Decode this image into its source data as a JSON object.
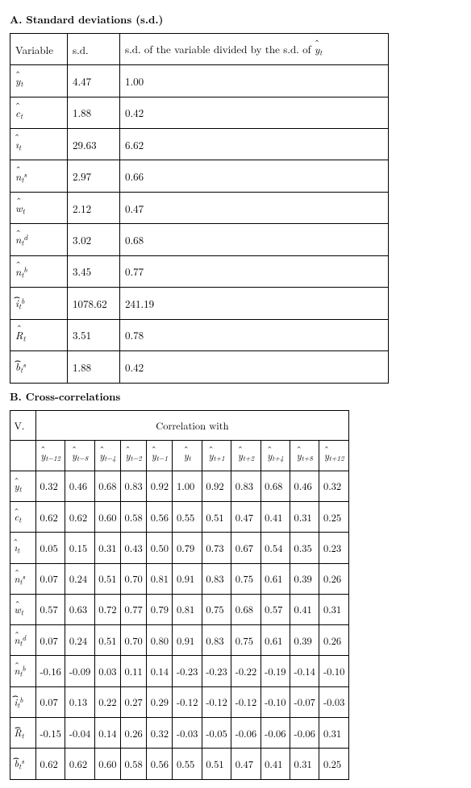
{
  "section_a_title": "A. Standard deviations (s.d.)",
  "section_b_title": "B. Cross-correlations",
  "text_color": "#000000",
  "background_color": "#ffffff",
  "border_color": "#000000",
  "tableA": {
    "headers": {
      "c1": "Variable",
      "c2": "s.d.",
      "c3": "s.d. of the variable divided by the s.d. of "
    },
    "y_hat_label": "ŷ_t",
    "rows": [
      {
        "var_html": "<span class='hat'>y</span><sub class='s'>t</sub>",
        "sd": "4.47",
        "ratio": "1.00"
      },
      {
        "var_html": "<span class='hat'>c</span><sub class='s'>t</sub>",
        "sd": "1.88",
        "ratio": "0.42"
      },
      {
        "var_html": "<span class='hat'>ı</span><sub class='s'>t</sub>",
        "sd": "29.63",
        "ratio": "6.62"
      },
      {
        "var_html": "<span class='hat'>n</span><sub class='s'>t</sub><sup class='s'>s</sup>",
        "sd": "2.97",
        "ratio": "0.66"
      },
      {
        "var_html": "<span class='hat'>w</span><sub class='s'>t</sub>",
        "sd": "2.12",
        "ratio": "0.47"
      },
      {
        "var_html": "<span class='hat'>n</span><sub class='s'>t</sub><sup class='s'>d</sup>",
        "sd": "3.02",
        "ratio": "0.68"
      },
      {
        "var_html": "<span class='hat'>n</span><sub class='s'>t</sub><sup class='s'>b</sup>",
        "sd": "3.45",
        "ratio": "0.77"
      },
      {
        "var_html": "<span class='whatc'>i</span><sub class='s'>t</sub><sup class='s'>b</sup>",
        "sd": "1078.62",
        "ratio": "241.19"
      },
      {
        "var_html": "<span class='hat'>R</span><sub class='s'>t</sub>",
        "sd": "3.51",
        "ratio": "0.78"
      },
      {
        "var_html": "<span class='whatc'>b</span><sub class='s'>t</sub><sup class='s'>s</sup>",
        "sd": "1.88",
        "ratio": "0.42"
      }
    ]
  },
  "tableB": {
    "corner_label": "V.",
    "header_label": "Correlation with",
    "lag_labels": [
      "t−12",
      "t−8",
      "t−4",
      "t−2",
      "t−1",
      "t",
      "t+1",
      "t+2",
      "t+4",
      "t+8",
      "t+12"
    ],
    "rows": [
      {
        "var_html": "<span class='hat'>y</span><sub class='s'>t</sub>",
        "vals": [
          "0.32",
          "0.46",
          "0.68",
          "0.83",
          "0.92",
          "1.00",
          "0.92",
          "0.83",
          "0.68",
          "0.46",
          "0.32"
        ]
      },
      {
        "var_html": "<span class='hat'>c</span><sub class='s'>t</sub>",
        "vals": [
          "0.62",
          "0.62",
          "0.60",
          "0.58",
          "0.56",
          "0.55",
          "0.51",
          "0.47",
          "0.41",
          "0.31",
          "0.25"
        ]
      },
      {
        "var_html": "<span class='hat'>ı</span><sub class='s'>t</sub>",
        "vals": [
          "0.05",
          "0.15",
          "0.31",
          "0.43",
          "0.50",
          "0.79",
          "0.73",
          "0.67",
          "0.54",
          "0.35",
          "0.23"
        ]
      },
      {
        "var_html": "<span class='hat'>n</span><sub class='s'>t</sub><sup class='s'>s</sup>",
        "vals": [
          "0.07",
          "0.24",
          "0.51",
          "0.70",
          "0.81",
          "0.91",
          "0.83",
          "0.75",
          "0.61",
          "0.39",
          "0.26"
        ]
      },
      {
        "var_html": "<span class='hat'>w</span><sub class='s'>t</sub>",
        "vals": [
          "0.57",
          "0.63",
          "0.72",
          "0.77",
          "0.79",
          "0.81",
          "0.75",
          "0.68",
          "0.57",
          "0.41",
          "0.31"
        ]
      },
      {
        "var_html": "<span class='hat'>n</span><sub class='s'>t</sub><sup class='s'>d</sup>",
        "vals": [
          "0.07",
          "0.24",
          "0.51",
          "0.70",
          "0.80",
          "0.91",
          "0.83",
          "0.75",
          "0.61",
          "0.39",
          "0.26"
        ]
      },
      {
        "var_html": "<span class='hat'>n</span><sub class='s'>t</sub><sup class='s'>b</sup>",
        "vals": [
          "-0.16",
          "-0.09",
          "0.03",
          "0.11",
          "0.14",
          "-0.23",
          "-0.23",
          "-0.22",
          "-0.19",
          "-0.14",
          "-0.10"
        ]
      },
      {
        "var_html": "<span class='whatc'>i</span><sub class='s'>t</sub><sup class='s'>b</sup>",
        "vals": [
          "0.07",
          "0.13",
          "0.22",
          "0.27",
          "0.29",
          "-0.12",
          "-0.12",
          "-0.12",
          "-0.10",
          "-0.07",
          "-0.03"
        ]
      },
      {
        "var_html": "<span class='whatc'>R</span><sub class='s'>t</sub>",
        "vals": [
          "-0.15",
          "-0.04",
          "0.14",
          "0.26",
          "0.32",
          "-0.03",
          "-0.05",
          "-0.06",
          "-0.06",
          "-0.06",
          "0.31"
        ]
      },
      {
        "var_html": "<span class='whatc'>b</span><sub class='s'>t</sub><sup class='s'>s</sup>",
        "vals": [
          "0.62",
          "0.62",
          "0.60",
          "0.58",
          "0.56",
          "0.55",
          "0.51",
          "0.47",
          "0.41",
          "0.31",
          "0.25"
        ]
      }
    ]
  }
}
